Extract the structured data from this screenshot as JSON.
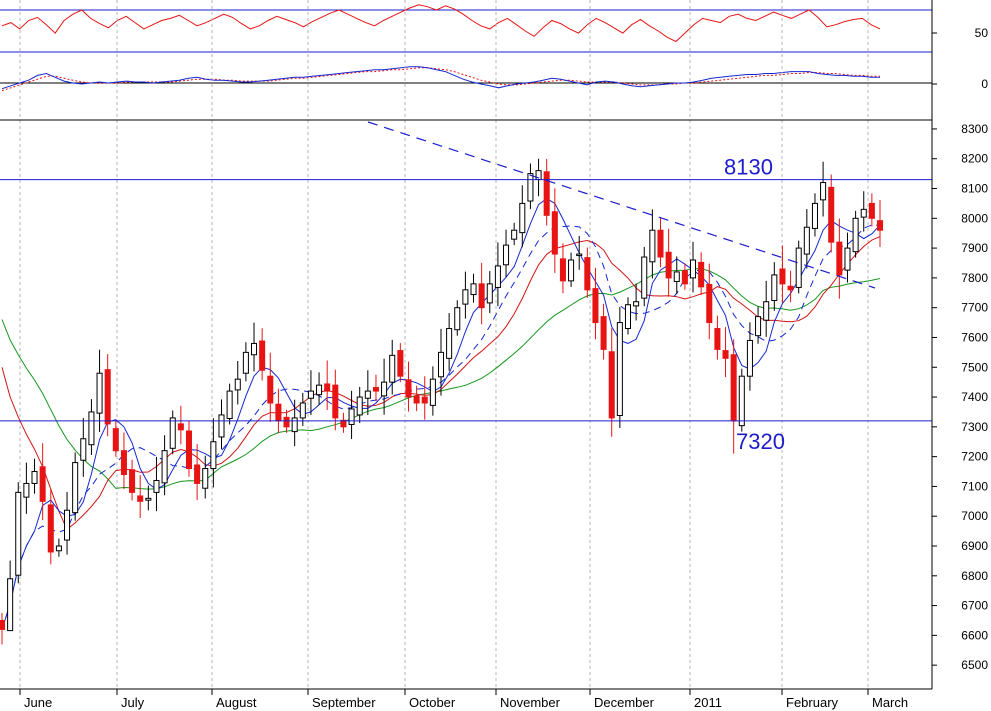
{
  "chart_data": {
    "type": "candlestick",
    "x_tick_labels": [
      "June",
      "July",
      "August",
      "September",
      "October",
      "November",
      "December",
      "2011",
      "February",
      "March"
    ],
    "oscillator_panel": {
      "y_tick_labels": [
        "50",
        "0"
      ],
      "levels": [
        70,
        50,
        30
      ],
      "rsi_series": [
        55,
        58,
        52,
        60,
        63,
        56,
        48,
        60,
        66,
        70,
        62,
        57,
        53,
        60,
        64,
        58,
        52,
        56,
        60,
        62,
        65,
        60,
        55,
        58,
        62,
        66,
        63,
        57,
        52,
        55,
        60,
        64,
        61,
        58,
        54,
        59,
        63,
        67,
        70,
        66,
        62,
        58,
        55,
        60,
        64,
        68,
        72,
        75,
        73,
        70,
        74,
        71,
        66,
        60,
        55,
        52,
        58,
        62,
        56,
        50,
        45,
        53,
        60,
        57,
        52,
        48,
        56,
        62,
        58,
        53,
        48,
        56,
        61,
        55,
        50,
        44,
        40,
        48,
        56,
        62,
        60,
        58,
        64,
        66,
        62,
        60,
        64,
        68,
        65,
        62,
        66,
        70,
        63,
        54,
        56,
        59,
        61,
        62,
        56,
        52
      ],
      "macd_series": [
        -6,
        -3,
        0,
        3,
        8,
        10,
        6,
        2,
        0,
        -1,
        0,
        1,
        0,
        1,
        2,
        1,
        1,
        0,
        1,
        2,
        3,
        5,
        6,
        4,
        3,
        3,
        2,
        1,
        1,
        2,
        3,
        4,
        5,
        6,
        6,
        7,
        8,
        9,
        10,
        11,
        12,
        13,
        14,
        14,
        15,
        16,
        17,
        17,
        16,
        14,
        12,
        8,
        4,
        1,
        -1,
        -3,
        -5,
        -3,
        -1,
        0,
        1,
        3,
        5,
        4,
        2,
        0,
        -2,
        1,
        2,
        1,
        -1,
        -3,
        -4,
        -3,
        -2,
        -1,
        0,
        0,
        1,
        3,
        5,
        6,
        7,
        8,
        9,
        9,
        10,
        10,
        11,
        12,
        12,
        12,
        10,
        9,
        8,
        8,
        7,
        7,
        6,
        6
      ],
      "macd_signal_series": [
        -8,
        -5,
        -2,
        1,
        4,
        7,
        7,
        5,
        3,
        1,
        0,
        0,
        0,
        0,
        1,
        1,
        1,
        1,
        1,
        1,
        2,
        3,
        4,
        4,
        4,
        3,
        3,
        2,
        2,
        2,
        2,
        3,
        4,
        5,
        5,
        6,
        7,
        8,
        9,
        10,
        11,
        12,
        12,
        13,
        14,
        14,
        15,
        16,
        16,
        15,
        14,
        12,
        9,
        6,
        3,
        1,
        -1,
        -2,
        -2,
        -1,
        0,
        1,
        2,
        3,
        3,
        2,
        1,
        1,
        1,
        1,
        0,
        -1,
        -2,
        -2,
        -2,
        -1,
        -1,
        0,
        0,
        1,
        2,
        3,
        4,
        5,
        6,
        7,
        8,
        8,
        9,
        10,
        10,
        11,
        11,
        10,
        10,
        9,
        8,
        8,
        7,
        7
      ]
    },
    "price_panel": {
      "y_tick_labels": [
        "8300",
        "8200",
        "8100",
        "8000",
        "7900",
        "7800",
        "7700",
        "7600",
        "7500",
        "7400",
        "7300",
        "7200",
        "7100",
        "7000",
        "6900",
        "6800",
        "6700",
        "6600",
        "6500"
      ],
      "ylim": [
        6420,
        8330
      ],
      "horizontal_levels": [
        8130,
        7320
      ],
      "annotations": [
        "8130",
        "7320"
      ],
      "series_colors": {
        "up": "#ffffff",
        "down": "#e81414",
        "ma_short": "#1428d2",
        "ma_mid": "#d21414",
        "ma_long": "#14961e",
        "trendline": "#1c1ccc"
      },
      "close_series": [
        6620,
        6790,
        7080,
        7110,
        7150,
        7050,
        6880,
        6900,
        7020,
        7180,
        7260,
        7350,
        7480,
        7310,
        7220,
        7140,
        7080,
        7050,
        7060,
        7120,
        7220,
        7330,
        7290,
        7160,
        7110,
        7160,
        7250,
        7340,
        7420,
        7460,
        7550,
        7580,
        7490,
        7380,
        7320,
        7300,
        7330,
        7380,
        7420,
        7440,
        7420,
        7330,
        7300,
        7360,
        7400,
        7420,
        7420,
        7450,
        7540,
        7470,
        7400,
        7380,
        7380,
        7460,
        7550,
        7630,
        7700,
        7760,
        7780,
        7700,
        7780,
        7840,
        7910,
        7960,
        8050,
        8150,
        8160,
        8010,
        7880,
        7790,
        7860,
        7880,
        7760,
        7650,
        7560,
        7330,
        7650,
        7710,
        7720,
        7870,
        7960,
        7870,
        7800,
        7820,
        7780,
        7860,
        7770,
        7650,
        7560,
        7530,
        7320,
        7470,
        7590,
        7670,
        7720,
        7810,
        7780,
        7760,
        7900,
        7970,
        8050,
        8120,
        7920,
        7810,
        7900,
        8000,
        8030,
        8000,
        7960
      ]
    }
  }
}
